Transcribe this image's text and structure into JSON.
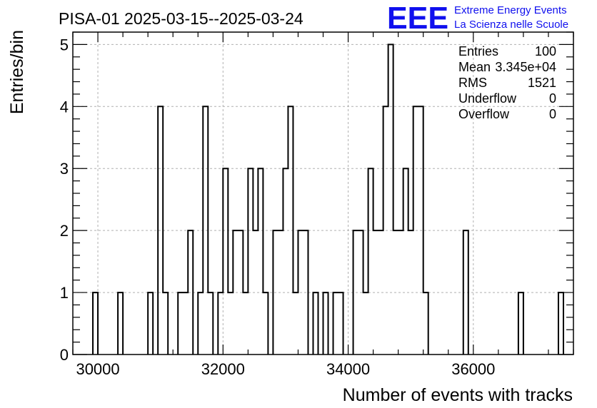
{
  "chart_data": {
    "type": "histogram",
    "title": "PISA-01 2025-03-15--2025-03-24",
    "xlabel": "Number of events with tracks",
    "ylabel": "Entries/bin",
    "xlim": [
      29600,
      37600
    ],
    "ylim": [
      0,
      5.2
    ],
    "bin_width": 80,
    "x_ticks": [
      30000,
      32000,
      34000,
      36000
    ],
    "y_ticks": [
      0,
      1,
      2,
      3,
      4,
      5
    ],
    "grid": true,
    "bins": [
      {
        "x": 29920,
        "count": 1
      },
      {
        "x": 30320,
        "count": 1
      },
      {
        "x": 30800,
        "count": 1
      },
      {
        "x": 30960,
        "count": 4
      },
      {
        "x": 31040,
        "count": 1
      },
      {
        "x": 31280,
        "count": 1
      },
      {
        "x": 31360,
        "count": 1
      },
      {
        "x": 31440,
        "count": 2
      },
      {
        "x": 31600,
        "count": 1
      },
      {
        "x": 31680,
        "count": 4
      },
      {
        "x": 31760,
        "count": 1
      },
      {
        "x": 31920,
        "count": 1
      },
      {
        "x": 32000,
        "count": 3
      },
      {
        "x": 32080,
        "count": 1
      },
      {
        "x": 32160,
        "count": 2
      },
      {
        "x": 32240,
        "count": 2
      },
      {
        "x": 32320,
        "count": 1
      },
      {
        "x": 32400,
        "count": 3
      },
      {
        "x": 32480,
        "count": 2
      },
      {
        "x": 32560,
        "count": 3
      },
      {
        "x": 32640,
        "count": 1
      },
      {
        "x": 32800,
        "count": 2
      },
      {
        "x": 32880,
        "count": 2
      },
      {
        "x": 32960,
        "count": 3
      },
      {
        "x": 33040,
        "count": 4
      },
      {
        "x": 33120,
        "count": 1
      },
      {
        "x": 33200,
        "count": 2
      },
      {
        "x": 33280,
        "count": 2
      },
      {
        "x": 33440,
        "count": 1
      },
      {
        "x": 33600,
        "count": 1
      },
      {
        "x": 33760,
        "count": 1
      },
      {
        "x": 33840,
        "count": 1
      },
      {
        "x": 34080,
        "count": 2
      },
      {
        "x": 34160,
        "count": 2
      },
      {
        "x": 34240,
        "count": 1
      },
      {
        "x": 34320,
        "count": 3
      },
      {
        "x": 34400,
        "count": 2
      },
      {
        "x": 34480,
        "count": 2
      },
      {
        "x": 34560,
        "count": 4
      },
      {
        "x": 34640,
        "count": 5
      },
      {
        "x": 34720,
        "count": 2
      },
      {
        "x": 34800,
        "count": 2
      },
      {
        "x": 34880,
        "count": 3
      },
      {
        "x": 34960,
        "count": 2
      },
      {
        "x": 35040,
        "count": 4
      },
      {
        "x": 35120,
        "count": 4
      },
      {
        "x": 35200,
        "count": 1
      },
      {
        "x": 35840,
        "count": 2
      },
      {
        "x": 36720,
        "count": 1
      },
      {
        "x": 37360,
        "count": 1
      }
    ],
    "stats": [
      {
        "label": "Entries",
        "value": "100"
      },
      {
        "label": "Mean",
        "value": "3.345e+04"
      },
      {
        "label": "RMS",
        "value": "1521"
      },
      {
        "label": "Underflow",
        "value": "0"
      },
      {
        "label": "Overflow",
        "value": "0"
      }
    ]
  },
  "logo": {
    "text": "EEE",
    "line1": "Extreme Energy Events",
    "line2": "La Scienza nelle Scuole",
    "color": "#1010ee"
  },
  "colors": {
    "histogram": "#000000",
    "grid": "#b0b0b0"
  }
}
